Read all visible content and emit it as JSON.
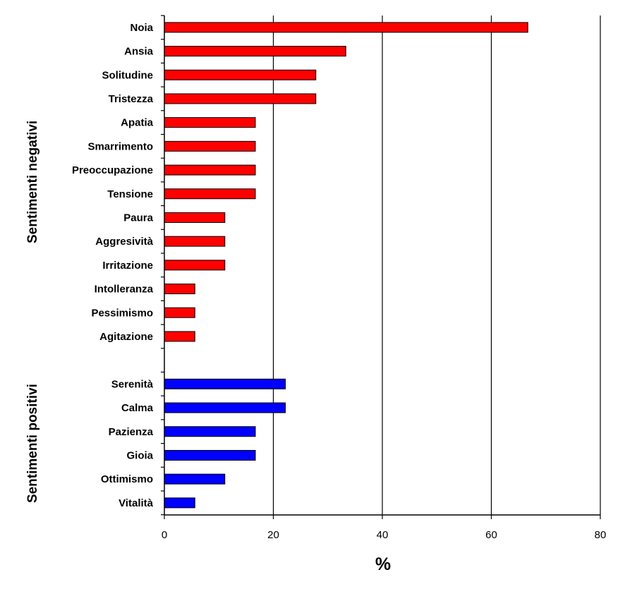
{
  "chart_data": {
    "type": "bar",
    "orientation": "horizontal",
    "xlabel": "%",
    "xlim": [
      0,
      80
    ],
    "xticks": [
      "0",
      "20",
      "40",
      "60",
      "80"
    ],
    "grid": true,
    "series": [
      {
        "name": "Sentimenti negativi",
        "color": "#ff0000",
        "categories": [
          "Noia",
          "Ansia",
          "Solitudine",
          "Tristezza",
          "Apatia",
          "Smarrimento",
          "Preoccupazione",
          "Tensione",
          "Paura",
          "Aggresività",
          "Irritazione",
          "Intolleranza",
          "Pessimismo",
          "Agitazione"
        ],
        "values": [
          66.7,
          33.3,
          27.8,
          27.8,
          16.7,
          16.7,
          16.7,
          16.7,
          11.1,
          11.1,
          11.1,
          5.6,
          5.6,
          5.6
        ]
      },
      {
        "name": "Sentimenti positivi",
        "color": "#0000ff",
        "categories": [
          "Serenità",
          "Calma",
          "Pazienza",
          "Gioia",
          "Ottimismo",
          "Vitalità"
        ],
        "values": [
          22.2,
          22.2,
          16.7,
          16.7,
          11.1,
          5.6
        ]
      }
    ]
  }
}
